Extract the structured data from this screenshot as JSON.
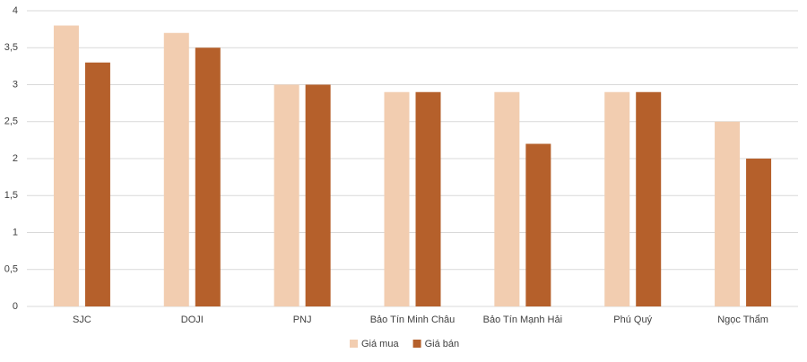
{
  "chart_data": {
    "type": "bar",
    "categories": [
      "SJC",
      "DOJI",
      "PNJ",
      "Bảo Tín Minh Châu",
      "Bảo Tín Mạnh Hải",
      "Phú Quý",
      "Ngọc Thẩm"
    ],
    "series": [
      {
        "name": "Giá mua",
        "color": "#f2cdb0",
        "values": [
          3.8,
          3.7,
          3,
          2.9,
          2.9,
          2.9,
          2.5
        ]
      },
      {
        "name": "Giá bán",
        "color": "#b5602b",
        "values": [
          3.3,
          3.5,
          3,
          2.9,
          2.2,
          2.9,
          2
        ]
      }
    ],
    "ylim": [
      0,
      4
    ],
    "yticks": [
      0,
      {
        "value": 0.5,
        "label": "0,5"
      },
      1,
      {
        "value": 1.5,
        "label": "1,5"
      },
      2,
      {
        "value": 2.5,
        "label": "2,5"
      },
      3,
      {
        "value": 3.5,
        "label": "3,5"
      },
      4
    ],
    "grid": true,
    "legend": "bottom"
  }
}
